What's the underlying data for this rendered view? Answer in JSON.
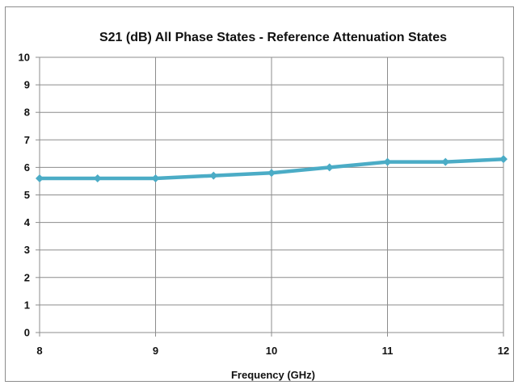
{
  "chart_data": {
    "type": "line",
    "title": "S21 (dB) All Phase States - Reference Attenuation States",
    "xlabel": "Frequency (GHz)",
    "ylabel": "",
    "xlim": [
      8,
      12
    ],
    "ylim": [
      0,
      10
    ],
    "x_ticks": [
      8,
      9,
      10,
      11,
      12
    ],
    "y_ticks": [
      0,
      1,
      2,
      3,
      4,
      5,
      6,
      7,
      8,
      9,
      10
    ],
    "grid": "vertical-and-horizontal",
    "legend": "none",
    "series": [
      {
        "color": "#4bacc6",
        "x": [
          8,
          8.5,
          9,
          9.5,
          10,
          10.5,
          11,
          11.5,
          12
        ],
        "y": [
          5.6,
          5.6,
          5.6,
          5.7,
          5.8,
          6.0,
          6.2,
          6.2,
          6.3
        ]
      }
    ]
  }
}
